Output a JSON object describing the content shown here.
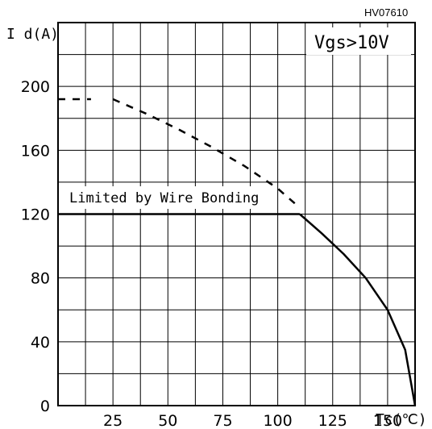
{
  "chart_data": {
    "type": "line",
    "figure_id": "HV07610",
    "condition": "Vgs>10V",
    "ylabel": "I d(A)",
    "xlabel": "Tc(℃)",
    "xlim": [
      0,
      162.5
    ],
    "ylim": [
      0,
      240
    ],
    "x_ticks": [
      "25",
      "50",
      "75",
      "100",
      "125",
      "150"
    ],
    "y_ticks": [
      "0",
      "40",
      "80",
      "120",
      "160",
      "200"
    ],
    "annotation": "Limited by Wire Bonding",
    "series": [
      {
        "style": "dashed",
        "segments": [
          [
            [
              0,
              192
            ],
            [
              15,
              192
            ]
          ],
          [
            [
              25,
              192
            ],
            [
              40,
              183
            ],
            [
              55,
              173
            ],
            [
              70,
              162
            ],
            [
              85,
              150
            ],
            [
              100,
              136
            ],
            [
              110,
              124
            ]
          ]
        ]
      },
      {
        "style": "solid",
        "segments": [
          [
            [
              0,
              120
            ],
            [
              110,
              120
            ]
          ],
          [
            [
              110,
              120
            ],
            [
              120,
              108
            ],
            [
              130,
              95
            ],
            [
              140,
              80
            ],
            [
              150,
              60
            ],
            [
              158,
              35
            ],
            [
              162.5,
              0
            ]
          ]
        ]
      }
    ]
  }
}
